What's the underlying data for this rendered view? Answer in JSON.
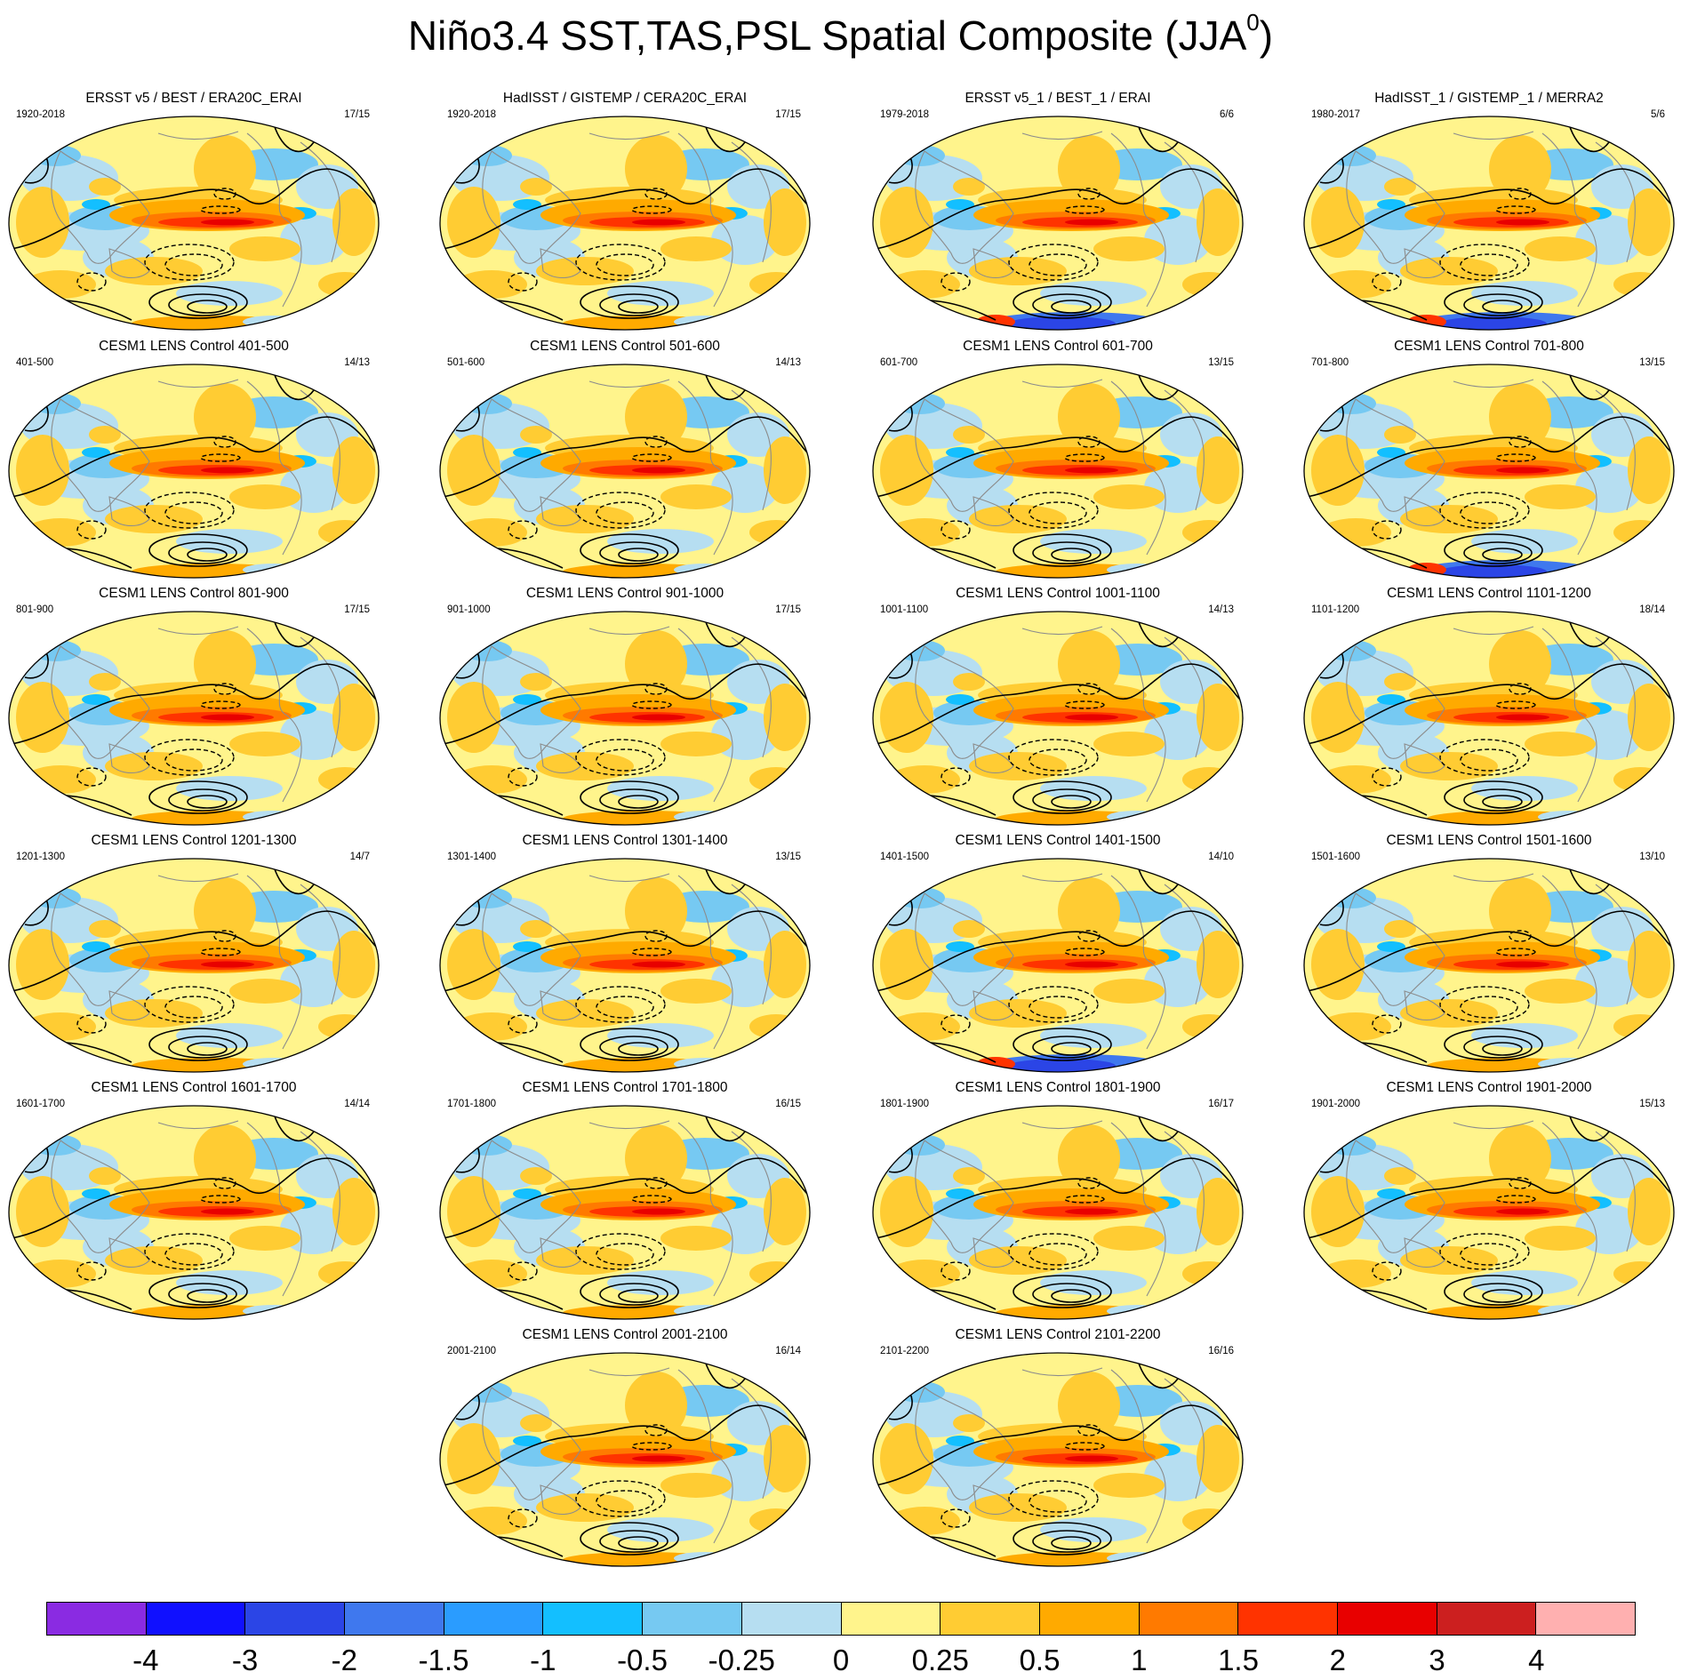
{
  "title": {
    "main": "Niño3.4 SST,TAS,PSL Spatial Composite (JJA",
    "sup": "0",
    "close": ")"
  },
  "colors": {
    "palette": [
      "#8a2be2",
      "#1010ff",
      "#2b45e6",
      "#3f78ee",
      "#2a9cff",
      "#13bfff",
      "#76c9f2",
      "#b6def1",
      "#fff48c",
      "#ffcc33",
      "#ffaa00",
      "#ff7a00",
      "#ff3300",
      "#e80000",
      "#cc1f1f",
      "#ffb0b0"
    ],
    "contour": "#000000",
    "coast": "#8c8c8c"
  },
  "colorbar": {
    "labels": [
      "-4",
      "-3",
      "-2",
      "-1.5",
      "-1",
      "-0.5",
      "-0.25",
      "0",
      "0.25",
      "0.5",
      "1",
      "1.5",
      "2",
      "3",
      "4"
    ]
  },
  "panels": [
    {
      "title": "ERSST v5 / BEST / ERA20C_ERAI",
      "left": "1920-2018",
      "right": "17/15",
      "dark_south": false
    },
    {
      "title": "HadISST / GISTEMP / CERA20C_ERAI",
      "left": "1920-2018",
      "right": "17/15",
      "dark_south": false
    },
    {
      "title": "ERSST v5_1 / BEST_1 / ERAI",
      "left": "1979-2018",
      "right": "6/6",
      "dark_south": true
    },
    {
      "title": "HadISST_1 / GISTEMP_1 / MERRA2",
      "left": "1980-2017",
      "right": "5/6",
      "dark_south": true
    },
    {
      "title": "CESM1 LENS Control 401-500",
      "left": "401-500",
      "right": "14/13",
      "dark_south": false
    },
    {
      "title": "CESM1 LENS Control 501-600",
      "left": "501-600",
      "right": "14/13",
      "dark_south": false
    },
    {
      "title": "CESM1 LENS Control 601-700",
      "left": "601-700",
      "right": "13/15",
      "dark_south": false
    },
    {
      "title": "CESM1 LENS Control 701-800",
      "left": "701-800",
      "right": "13/15",
      "dark_south": true
    },
    {
      "title": "CESM1 LENS Control 801-900",
      "left": "801-900",
      "right": "17/15",
      "dark_south": false
    },
    {
      "title": "CESM1 LENS Control 901-1000",
      "left": "901-1000",
      "right": "17/15",
      "dark_south": false
    },
    {
      "title": "CESM1 LENS Control 1001-1100",
      "left": "1001-1100",
      "right": "14/13",
      "dark_south": false
    },
    {
      "title": "CESM1 LENS Control 1101-1200",
      "left": "1101-1200",
      "right": "18/14",
      "dark_south": false
    },
    {
      "title": "CESM1 LENS Control 1201-1300",
      "left": "1201-1300",
      "right": "14/7",
      "dark_south": false
    },
    {
      "title": "CESM1 LENS Control 1301-1400",
      "left": "1301-1400",
      "right": "13/15",
      "dark_south": false
    },
    {
      "title": "CESM1 LENS Control 1401-1500",
      "left": "1401-1500",
      "right": "14/10",
      "dark_south": true
    },
    {
      "title": "CESM1 LENS Control 1501-1600",
      "left": "1501-1600",
      "right": "13/10",
      "dark_south": false
    },
    {
      "title": "CESM1 LENS Control 1601-1700",
      "left": "1601-1700",
      "right": "14/14",
      "dark_south": false
    },
    {
      "title": "CESM1 LENS Control 1701-1800",
      "left": "1701-1800",
      "right": "16/15",
      "dark_south": false
    },
    {
      "title": "CESM1 LENS Control 1801-1900",
      "left": "1801-1900",
      "right": "16/17",
      "dark_south": false
    },
    {
      "title": "CESM1 LENS Control 1901-2000",
      "left": "1901-2000",
      "right": "15/13",
      "dark_south": false
    },
    {
      "title": "CESM1 LENS Control 2001-2100",
      "left": "2001-2100",
      "right": "16/14",
      "dark_south": false
    },
    {
      "title": "CESM1 LENS Control 2101-2200",
      "left": "2101-2200",
      "right": "16/16",
      "dark_south": false
    }
  ]
}
